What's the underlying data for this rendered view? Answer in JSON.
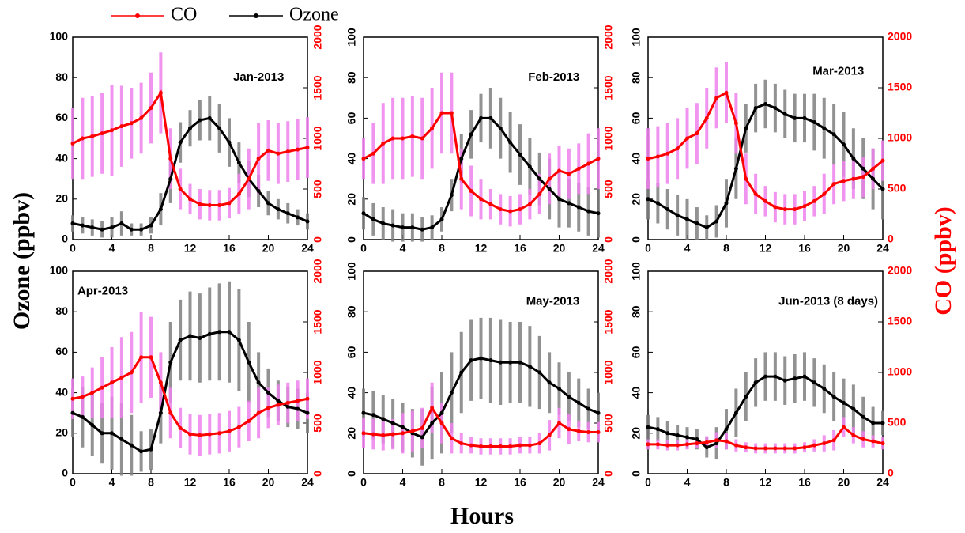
{
  "labels": {
    "y": "Ozone (ppbv)",
    "y2": "CO (ppbv)",
    "x": "Hours"
  },
  "chart_data": [
    {
      "type": "line",
      "title": "Jan-2013",
      "x": [
        0,
        1,
        2,
        3,
        4,
        5,
        6,
        7,
        8,
        9,
        10,
        11,
        12,
        13,
        14,
        15,
        16,
        17,
        18,
        19,
        20,
        21,
        22,
        23,
        24
      ],
      "xlim": [
        0,
        24
      ],
      "xticks": [
        0,
        4,
        8,
        12,
        16,
        20,
        24
      ],
      "ylim": [
        0,
        100
      ],
      "yticks": [
        0,
        20,
        40,
        60,
        80,
        100
      ],
      "y2lim": [
        0,
        2000
      ],
      "y2ticks": [
        0,
        500,
        1000,
        1500,
        2000
      ],
      "series": [
        {
          "name": "CO",
          "color": "#ff0000",
          "error_color": "#ee82ee",
          "axis": "y2",
          "values": [
            950,
            1000,
            1020,
            1050,
            1080,
            1120,
            1150,
            1200,
            1300,
            1450,
            800,
            500,
            400,
            350,
            340,
            340,
            360,
            450,
            600,
            800,
            880,
            850,
            870,
            890,
            910
          ],
          "errors": [
            350,
            400,
            400,
            400,
            450,
            400,
            350,
            350,
            350,
            400,
            300,
            200,
            150,
            150,
            150,
            150,
            150,
            200,
            300,
            350,
            300,
            300,
            300,
            300,
            300
          ]
        },
        {
          "name": "Ozone",
          "color": "#000000",
          "error_color": "#808080",
          "values": [
            8,
            7,
            6,
            5,
            6,
            8,
            5,
            5,
            7,
            15,
            30,
            48,
            55,
            59,
            60,
            55,
            48,
            38,
            30,
            24,
            18,
            15,
            13,
            11,
            9
          ],
          "errors": [
            4,
            4,
            4,
            4,
            5,
            6,
            3,
            3,
            4,
            8,
            12,
            10,
            9,
            10,
            11,
            12,
            12,
            10,
            9,
            8,
            6,
            5,
            5,
            4,
            4
          ]
        }
      ]
    },
    {
      "type": "line",
      "title": "Feb-2013",
      "x": [
        0,
        1,
        2,
        3,
        4,
        5,
        6,
        7,
        8,
        9,
        10,
        11,
        12,
        13,
        14,
        15,
        16,
        17,
        18,
        19,
        20,
        21,
        22,
        23,
        24
      ],
      "xlim": [
        0,
        24
      ],
      "xticks": [
        0,
        4,
        8,
        12,
        16,
        20,
        24
      ],
      "ylim": [
        0,
        100
      ],
      "yticks": [
        0,
        20,
        40,
        60,
        80,
        100
      ],
      "y2lim": [
        0,
        2000
      ],
      "y2ticks": [
        0,
        500,
        1000,
        1500,
        2000
      ],
      "series": [
        {
          "name": "CO",
          "color": "#ff0000",
          "error_color": "#ee82ee",
          "axis": "y2",
          "values": [
            800,
            850,
            950,
            1000,
            1000,
            1020,
            1000,
            1100,
            1250,
            1250,
            600,
            480,
            400,
            350,
            300,
            280,
            300,
            350,
            450,
            600,
            680,
            650,
            700,
            750,
            800
          ],
          "errors": [
            200,
            300,
            400,
            400,
            400,
            400,
            400,
            400,
            400,
            400,
            300,
            250,
            200,
            150,
            150,
            150,
            150,
            150,
            200,
            250,
            250,
            250,
            250,
            300,
            300
          ]
        },
        {
          "name": "Ozone",
          "color": "#000000",
          "error_color": "#808080",
          "values": [
            13,
            10,
            8,
            7,
            6,
            6,
            5,
            6,
            10,
            22,
            40,
            52,
            60,
            60,
            55,
            48,
            42,
            36,
            30,
            25,
            20,
            18,
            16,
            14,
            13
          ],
          "errors": [
            8,
            8,
            8,
            8,
            7,
            7,
            6,
            6,
            6,
            8,
            12,
            12,
            12,
            15,
            15,
            15,
            15,
            14,
            13,
            15,
            14,
            12,
            12,
            12,
            12
          ]
        }
      ]
    },
    {
      "type": "line",
      "title": "Mar-2013",
      "x": [
        0,
        1,
        2,
        3,
        4,
        5,
        6,
        7,
        8,
        9,
        10,
        11,
        12,
        13,
        14,
        15,
        16,
        17,
        18,
        19,
        20,
        21,
        22,
        23,
        24
      ],
      "xlim": [
        0,
        24
      ],
      "xticks": [
        0,
        4,
        8,
        12,
        16,
        20,
        24
      ],
      "ylim": [
        0,
        100
      ],
      "yticks": [
        0,
        20,
        40,
        60,
        80,
        100
      ],
      "y2lim": [
        0,
        2000
      ],
      "y2ticks": [
        0,
        500,
        1000,
        1500,
        2000
      ],
      "series": [
        {
          "name": "CO",
          "color": "#ff0000",
          "error_color": "#ee82ee",
          "axis": "y2",
          "values": [
            800,
            820,
            850,
            900,
            1000,
            1050,
            1200,
            1400,
            1450,
            1150,
            600,
            450,
            380,
            320,
            300,
            300,
            330,
            380,
            450,
            550,
            580,
            600,
            620,
            700,
            780
          ],
          "errors": [
            300,
            300,
            300,
            300,
            300,
            300,
            300,
            300,
            300,
            300,
            250,
            200,
            150,
            150,
            150,
            150,
            150,
            150,
            200,
            200,
            200,
            200,
            200,
            200,
            200
          ]
        },
        {
          "name": "Ozone",
          "color": "#000000",
          "error_color": "#808080",
          "values": [
            20,
            18,
            15,
            12,
            10,
            8,
            6,
            9,
            18,
            35,
            55,
            65,
            67,
            65,
            62,
            60,
            60,
            58,
            55,
            52,
            47,
            40,
            35,
            30,
            25
          ],
          "errors": [
            10,
            10,
            10,
            10,
            10,
            8,
            6,
            8,
            12,
            15,
            12,
            12,
            12,
            12,
            12,
            12,
            12,
            14,
            15,
            15,
            16,
            15,
            15,
            15,
            15
          ]
        }
      ]
    },
    {
      "type": "line",
      "title": "Apr-2013",
      "x": [
        0,
        1,
        2,
        3,
        4,
        5,
        6,
        7,
        8,
        9,
        10,
        11,
        12,
        13,
        14,
        15,
        16,
        17,
        18,
        19,
        20,
        21,
        22,
        23,
        24
      ],
      "xlim": [
        0,
        24
      ],
      "xticks": [
        0,
        4,
        8,
        12,
        16,
        20,
        24
      ],
      "ylim": [
        0,
        100
      ],
      "yticks": [
        0,
        20,
        40,
        60,
        80,
        100
      ],
      "y2lim": [
        0,
        2000
      ],
      "y2ticks": [
        0,
        500,
        1000,
        1500,
        2000
      ],
      "series": [
        {
          "name": "CO",
          "color": "#ff0000",
          "error_color": "#ee82ee",
          "axis": "y2",
          "values": [
            740,
            760,
            800,
            850,
            900,
            950,
            1000,
            1150,
            1150,
            900,
            600,
            450,
            390,
            380,
            390,
            400,
            420,
            460,
            520,
            600,
            650,
            680,
            700,
            720,
            740
          ],
          "errors": [
            200,
            200,
            250,
            300,
            350,
            400,
            400,
            450,
            400,
            300,
            250,
            200,
            200,
            200,
            200,
            200,
            200,
            200,
            200,
            250,
            200,
            200,
            200,
            200,
            200
          ]
        },
        {
          "name": "Ozone",
          "color": "#000000",
          "error_color": "#808080",
          "values": [
            30,
            28,
            24,
            20,
            20,
            17,
            14,
            11,
            12,
            30,
            55,
            66,
            68,
            67,
            69,
            70,
            70,
            66,
            55,
            45,
            40,
            36,
            33,
            32,
            30
          ],
          "errors": [
            12,
            15,
            15,
            15,
            18,
            18,
            15,
            10,
            10,
            15,
            20,
            20,
            22,
            22,
            23,
            24,
            25,
            25,
            20,
            15,
            12,
            10,
            10,
            10,
            10
          ]
        }
      ]
    },
    {
      "type": "line",
      "title": "May-2013",
      "x": [
        0,
        1,
        2,
        3,
        4,
        5,
        6,
        7,
        8,
        9,
        10,
        11,
        12,
        13,
        14,
        15,
        16,
        17,
        18,
        19,
        20,
        21,
        22,
        23,
        24
      ],
      "xlim": [
        0,
        24
      ],
      "xticks": [
        0,
        4,
        8,
        12,
        16,
        20,
        24
      ],
      "ylim": [
        0,
        100
      ],
      "yticks": [
        0,
        20,
        40,
        60,
        80,
        100
      ],
      "y2lim": [
        0,
        2000
      ],
      "y2ticks": [
        0,
        500,
        1000,
        1500,
        2000
      ],
      "series": [
        {
          "name": "CO",
          "color": "#ff0000",
          "error_color": "#ee82ee",
          "axis": "y2",
          "values": [
            400,
            390,
            380,
            390,
            400,
            420,
            450,
            650,
            500,
            350,
            300,
            280,
            270,
            270,
            270,
            270,
            280,
            280,
            300,
            380,
            500,
            440,
            420,
            410,
            410
          ],
          "errors": [
            150,
            150,
            150,
            150,
            200,
            200,
            200,
            250,
            200,
            150,
            100,
            80,
            80,
            80,
            80,
            80,
            80,
            80,
            100,
            150,
            150,
            150,
            100,
            100,
            100
          ]
        },
        {
          "name": "Ozone",
          "color": "#000000",
          "error_color": "#808080",
          "values": [
            30,
            29,
            27,
            25,
            23,
            20,
            18,
            25,
            30,
            40,
            50,
            56,
            57,
            56,
            55,
            55,
            55,
            53,
            50,
            45,
            42,
            38,
            35,
            32,
            30
          ],
          "errors": [
            12,
            12,
            12,
            12,
            12,
            12,
            14,
            18,
            20,
            20,
            20,
            20,
            20,
            21,
            21,
            20,
            20,
            20,
            18,
            15,
            13,
            12,
            12,
            10,
            10
          ]
        }
      ]
    },
    {
      "type": "line",
      "title": "Jun-2013 (8 days)",
      "x": [
        0,
        1,
        2,
        3,
        4,
        5,
        6,
        7,
        8,
        9,
        10,
        11,
        12,
        13,
        14,
        15,
        16,
        17,
        18,
        19,
        20,
        21,
        22,
        23,
        24
      ],
      "xlim": [
        0,
        24
      ],
      "xticks": [
        0,
        4,
        8,
        12,
        16,
        20,
        24
      ],
      "ylim": [
        0,
        100
      ],
      "yticks": [
        0,
        20,
        40,
        60,
        80,
        100
      ],
      "y2lim": [
        0,
        2000
      ],
      "y2ticks": [
        0,
        500,
        1000,
        1500,
        2000
      ],
      "series": [
        {
          "name": "CO",
          "color": "#ff0000",
          "error_color": "#ee82ee",
          "axis": "y2",
          "values": [
            290,
            290,
            280,
            280,
            290,
            300,
            310,
            330,
            320,
            280,
            260,
            250,
            250,
            250,
            250,
            250,
            260,
            280,
            300,
            330,
            460,
            380,
            340,
            320,
            300
          ],
          "errors": [
            50,
            50,
            50,
            50,
            50,
            50,
            60,
            80,
            80,
            60,
            50,
            50,
            50,
            50,
            50,
            50,
            50,
            60,
            80,
            100,
            100,
            80,
            80,
            60,
            60
          ]
        },
        {
          "name": "Ozone",
          "color": "#000000",
          "error_color": "#808080",
          "values": [
            23,
            22,
            20,
            19,
            18,
            17,
            13,
            15,
            22,
            30,
            38,
            45,
            48,
            48,
            46,
            47,
            48,
            45,
            42,
            38,
            35,
            32,
            28,
            25,
            25
          ],
          "errors": [
            6,
            6,
            6,
            5,
            5,
            5,
            5,
            8,
            10,
            12,
            12,
            12,
            12,
            12,
            12,
            12,
            12,
            12,
            12,
            12,
            12,
            12,
            10,
            8,
            6
          ]
        }
      ]
    }
  ]
}
